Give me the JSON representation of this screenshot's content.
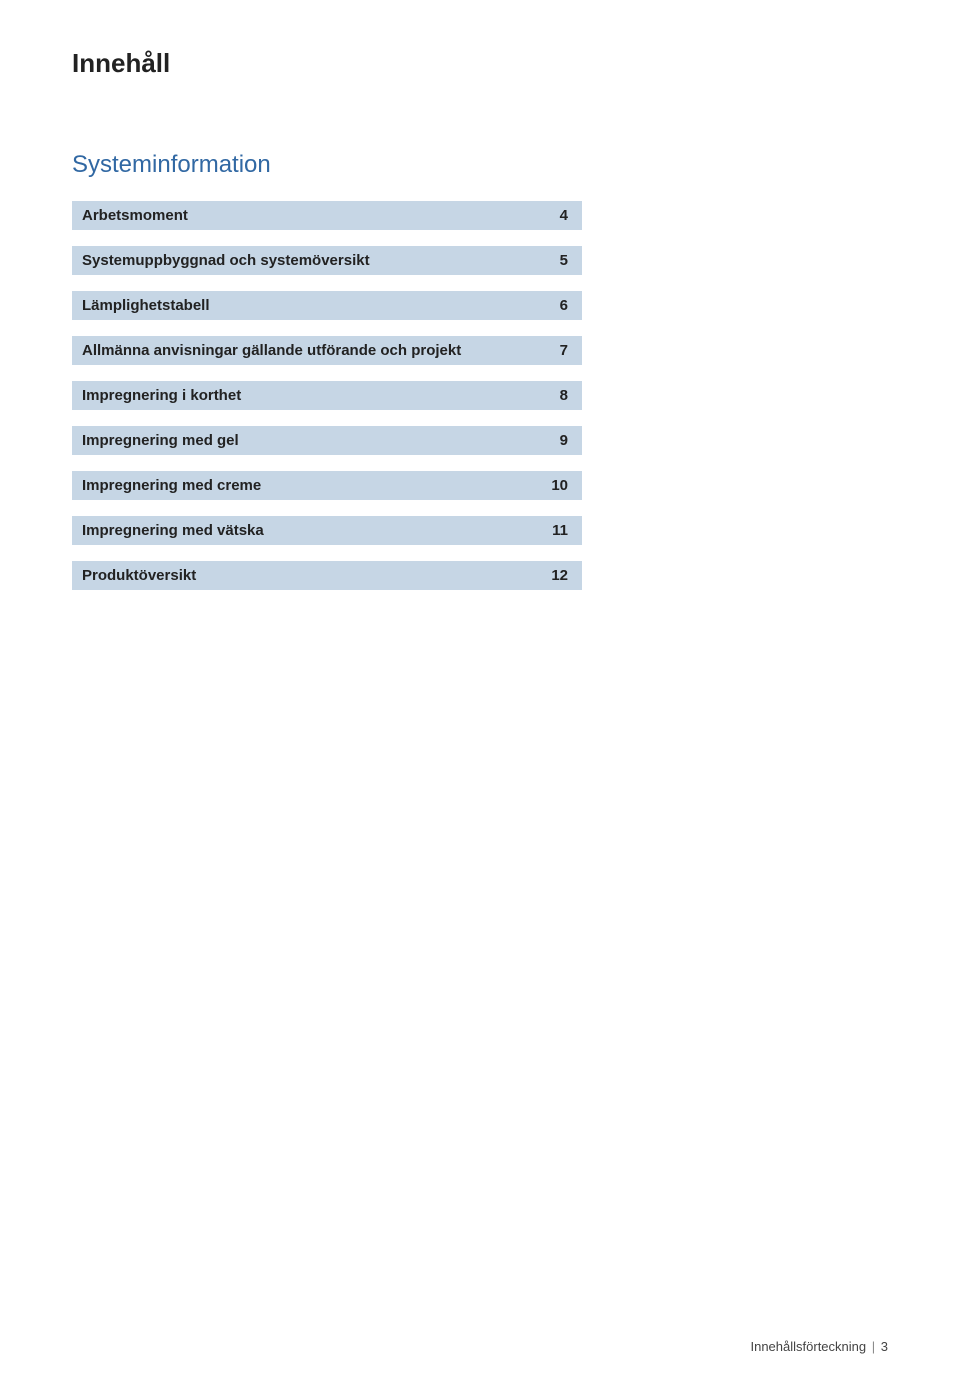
{
  "page": {
    "title": "Innehåll",
    "section_title": "Systeminformation",
    "background_color": "#ffffff",
    "row_background_color": "#c6d6e5",
    "text_color": "#222222",
    "section_title_color": "#3168a3",
    "title_fontsize": 26,
    "section_title_fontsize": 24,
    "row_font_size": 15,
    "row_width": 510,
    "row_gap": 16,
    "footer_label": "Innehållsförteckning",
    "footer_page": "3",
    "footer_separator": "|"
  },
  "toc": {
    "items": [
      {
        "label": "Arbetsmoment",
        "page": "4"
      },
      {
        "label": "Systemuppbyggnad och systemöversikt",
        "page": "5"
      },
      {
        "label": "Lämplighetstabell",
        "page": "6"
      },
      {
        "label": "Allmänna anvisningar gällande utförande och projekt",
        "page": "7"
      },
      {
        "label": "Impregnering i korthet",
        "page": "8"
      },
      {
        "label": "Impregnering med gel",
        "page": "9"
      },
      {
        "label": "Impregnering med creme",
        "page": "10"
      },
      {
        "label": "Impregnering med vätska",
        "page": "11"
      },
      {
        "label": "Produktöversikt",
        "page": "12"
      }
    ]
  }
}
